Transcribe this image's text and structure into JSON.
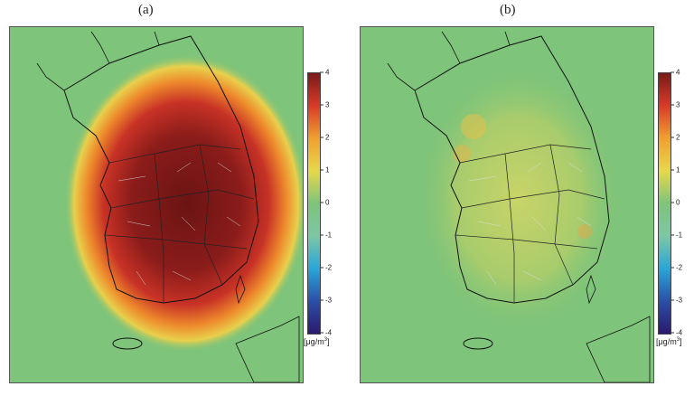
{
  "panels": [
    {
      "label": "(a)"
    },
    {
      "label": "(b)"
    }
  ],
  "colorbar": {
    "ticks": [
      "4",
      "3",
      "2",
      "1",
      "0",
      "-1",
      "-2",
      "-3",
      "-4"
    ],
    "unit_prefix": "[μg/m",
    "unit_sup": "3",
    "unit_suffix": "]",
    "colors": [
      "#2a1a6e",
      "#2b4fa8",
      "#2aa6d8",
      "#7dc7a4",
      "#7ec47a",
      "#e8d84a",
      "#f0a030",
      "#d83a28",
      "#7a1a1a"
    ]
  }
}
